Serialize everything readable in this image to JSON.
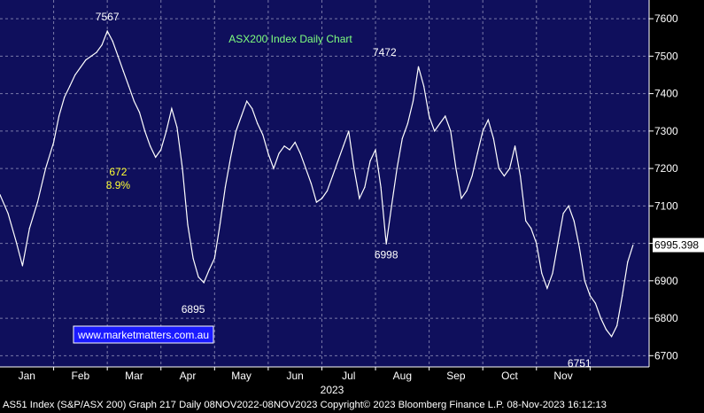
{
  "chart_data": {
    "type": "line",
    "title": "ASX200 Index Daily Chart",
    "xlabel": "2023",
    "ylabel": "",
    "ylim": [
      6670,
      7650
    ],
    "y_ticks": [
      6700,
      6800,
      6900,
      7000,
      7100,
      7200,
      7300,
      7400,
      7500,
      7600
    ],
    "x_ticks": [
      "Jan",
      "Feb",
      "Mar",
      "Apr",
      "May",
      "Jun",
      "Jul",
      "Aug",
      "Sep",
      "Oct",
      "Nov"
    ],
    "grid": true,
    "last_value": "6995.398",
    "colors": {
      "background": "#000000",
      "plot_background": "#0f0f5c",
      "grid": "#7a7aa8",
      "line": "#ffffff",
      "title": "#7fff7f",
      "highlight": "#ffff33",
      "link_box": "#1a1aff"
    },
    "annotations": [
      {
        "text": "7567",
        "color": "white",
        "x": 2.0,
        "y": 7567
      },
      {
        "text": "672",
        "color": "yellow",
        "x": 2.4,
        "y": 7200
      },
      {
        "text": "8.9%",
        "color": "yellow",
        "x": 2.4,
        "y": 7200
      },
      {
        "text": "6895",
        "color": "white",
        "x": 3.6,
        "y": 6895
      },
      {
        "text": "7472",
        "color": "white",
        "x": 7.4,
        "y": 7472
      },
      {
        "text": "6998",
        "color": "white",
        "x": 7.2,
        "y": 6998
      },
      {
        "text": "6751",
        "color": "white",
        "x": 10.8,
        "y": 6751
      }
    ],
    "series": [
      {
        "values": [
          [
            0.0,
            7130
          ],
          [
            0.15,
            7080
          ],
          [
            0.3,
            7005
          ],
          [
            0.42,
            6940
          ],
          [
            0.55,
            7040
          ],
          [
            0.7,
            7110
          ],
          [
            0.85,
            7200
          ],
          [
            1.0,
            7270
          ],
          [
            1.1,
            7340
          ],
          [
            1.2,
            7390
          ],
          [
            1.3,
            7420
          ],
          [
            1.4,
            7450
          ],
          [
            1.5,
            7470
          ],
          [
            1.6,
            7490
          ],
          [
            1.7,
            7500
          ],
          [
            1.8,
            7510
          ],
          [
            1.9,
            7530
          ],
          [
            2.0,
            7567
          ],
          [
            2.1,
            7540
          ],
          [
            2.2,
            7500
          ],
          [
            2.3,
            7460
          ],
          [
            2.4,
            7420
          ],
          [
            2.5,
            7380
          ],
          [
            2.6,
            7350
          ],
          [
            2.7,
            7300
          ],
          [
            2.8,
            7260
          ],
          [
            2.9,
            7230
          ],
          [
            3.0,
            7250
          ],
          [
            3.1,
            7300
          ],
          [
            3.2,
            7360
          ],
          [
            3.3,
            7310
          ],
          [
            3.4,
            7200
          ],
          [
            3.5,
            7050
          ],
          [
            3.6,
            6960
          ],
          [
            3.7,
            6910
          ],
          [
            3.8,
            6895
          ],
          [
            3.9,
            6930
          ],
          [
            4.0,
            6960
          ],
          [
            4.1,
            7050
          ],
          [
            4.2,
            7150
          ],
          [
            4.3,
            7230
          ],
          [
            4.4,
            7300
          ],
          [
            4.5,
            7340
          ],
          [
            4.6,
            7380
          ],
          [
            4.7,
            7360
          ],
          [
            4.8,
            7320
          ],
          [
            4.9,
            7290
          ],
          [
            5.0,
            7240
          ],
          [
            5.1,
            7200
          ],
          [
            5.2,
            7240
          ],
          [
            5.3,
            7260
          ],
          [
            5.4,
            7250
          ],
          [
            5.5,
            7270
          ],
          [
            5.6,
            7240
          ],
          [
            5.7,
            7200
          ],
          [
            5.8,
            7160
          ],
          [
            5.9,
            7110
          ],
          [
            6.0,
            7120
          ],
          [
            6.1,
            7140
          ],
          [
            6.2,
            7180
          ],
          [
            6.3,
            7220
          ],
          [
            6.4,
            7260
          ],
          [
            6.5,
            7300
          ],
          [
            6.6,
            7200
          ],
          [
            6.7,
            7120
          ],
          [
            6.8,
            7150
          ],
          [
            6.9,
            7220
          ],
          [
            7.0,
            7250
          ],
          [
            7.1,
            7150
          ],
          [
            7.2,
            6998
          ],
          [
            7.3,
            7100
          ],
          [
            7.4,
            7200
          ],
          [
            7.5,
            7280
          ],
          [
            7.6,
            7320
          ],
          [
            7.7,
            7380
          ],
          [
            7.8,
            7472
          ],
          [
            7.9,
            7420
          ],
          [
            8.0,
            7340
          ],
          [
            8.1,
            7300
          ],
          [
            8.2,
            7320
          ],
          [
            8.3,
            7340
          ],
          [
            8.4,
            7300
          ],
          [
            8.5,
            7200
          ],
          [
            8.6,
            7120
          ],
          [
            8.7,
            7140
          ],
          [
            8.8,
            7180
          ],
          [
            8.9,
            7240
          ],
          [
            9.0,
            7300
          ],
          [
            9.1,
            7330
          ],
          [
            9.2,
            7280
          ],
          [
            9.3,
            7200
          ],
          [
            9.4,
            7180
          ],
          [
            9.5,
            7200
          ],
          [
            9.6,
            7260
          ],
          [
            9.7,
            7180
          ],
          [
            9.8,
            7060
          ],
          [
            9.9,
            7040
          ],
          [
            10.0,
            7000
          ],
          [
            10.1,
            6920
          ],
          [
            10.2,
            6880
          ],
          [
            10.3,
            6920
          ],
          [
            10.4,
            7000
          ],
          [
            10.5,
            7080
          ],
          [
            10.6,
            7100
          ],
          [
            10.7,
            7060
          ],
          [
            10.8,
            6990
          ],
          [
            10.9,
            6900
          ],
          [
            11.0,
            6860
          ],
          [
            11.1,
            6840
          ],
          [
            11.2,
            6800
          ],
          [
            11.3,
            6770
          ],
          [
            11.4,
            6751
          ],
          [
            11.5,
            6780
          ],
          [
            11.6,
            6860
          ],
          [
            11.7,
            6950
          ],
          [
            11.8,
            6995
          ]
        ]
      }
    ]
  },
  "footer": {
    "left_text": "AS51 Index (S&P/ASX 200) Graph 217  Daily 08NOV2022-08NOV2023 Copyright© 2023 Bloomberg Finance L.P. 08-Nov-2023 16:12:13"
  },
  "watermark": {
    "text": "www.marketmatters.com.au"
  }
}
